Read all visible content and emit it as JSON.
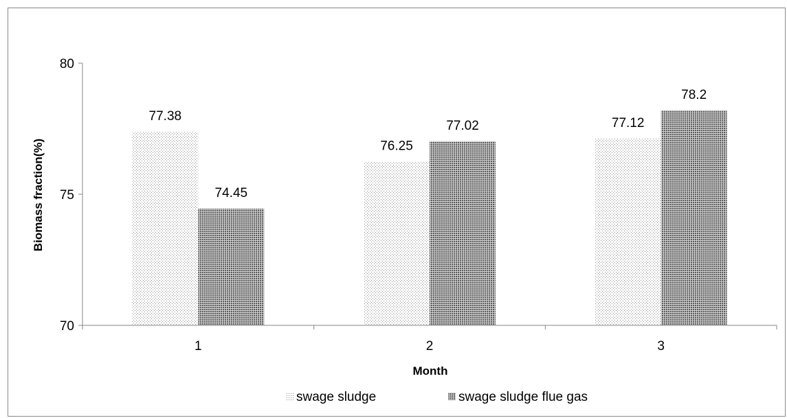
{
  "chart_data": {
    "type": "bar",
    "title": "",
    "xlabel": "Month",
    "ylabel": "Biomass fraction(%)",
    "categories": [
      "1",
      "2",
      "3"
    ],
    "ylim": [
      70,
      80
    ],
    "yticks": [
      70,
      75,
      80
    ],
    "grid": false,
    "legend_position": "bottom",
    "series": [
      {
        "name": "swage sludge",
        "values": [
          77.38,
          76.25,
          77.12
        ],
        "value_labels": [
          "77.38",
          "76.25",
          "77.12"
        ],
        "pattern": "fine-dots",
        "color": "#9a9a9a"
      },
      {
        "name": "swage sludge flue gas",
        "values": [
          74.45,
          77.02,
          78.2
        ],
        "value_labels": [
          "74.45",
          "77.02",
          "78.2"
        ],
        "pattern": "dense-dots",
        "color": "#555555"
      }
    ]
  }
}
